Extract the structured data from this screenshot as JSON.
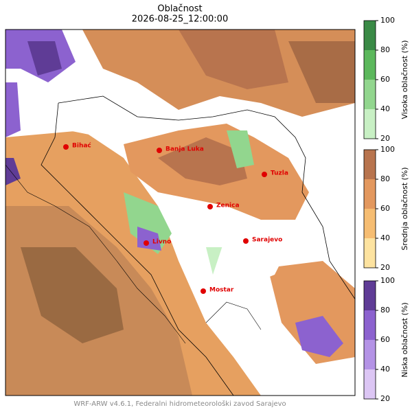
{
  "title": "Oblačnost",
  "subtitle": "2026-08-25_12:00:00",
  "cities": [
    "Bihać",
    "Banja Luka",
    "Tuzla",
    "Zenica",
    "Livno",
    "Sarajevo",
    "Mostar"
  ],
  "colorbars": [
    {
      "label": "Visoka oblačnost (%)",
      "ticks": [
        20,
        40,
        60,
        80,
        100
      ],
      "colors": [
        "#c8f0c4",
        "#92d68e",
        "#5cb85c",
        "#3a8a46"
      ]
    },
    {
      "label": "Srednja oblačnost (%)",
      "ticks": [
        20,
        40,
        60,
        80,
        100
      ],
      "colors": [
        "#fde3a0",
        "#f6bd72",
        "#e3985e",
        "#b8744e"
      ]
    },
    {
      "label": "Niska oblačnost (%)",
      "ticks": [
        20,
        40,
        60,
        80,
        100
      ],
      "colors": [
        "#dcc6f4",
        "#b493e6",
        "#8c62cf",
        "#5f3c96"
      ]
    }
  ],
  "footer": "WRF-ARW v4.6.1, Federalni hidrometeorološki zavod Sarajevo"
}
